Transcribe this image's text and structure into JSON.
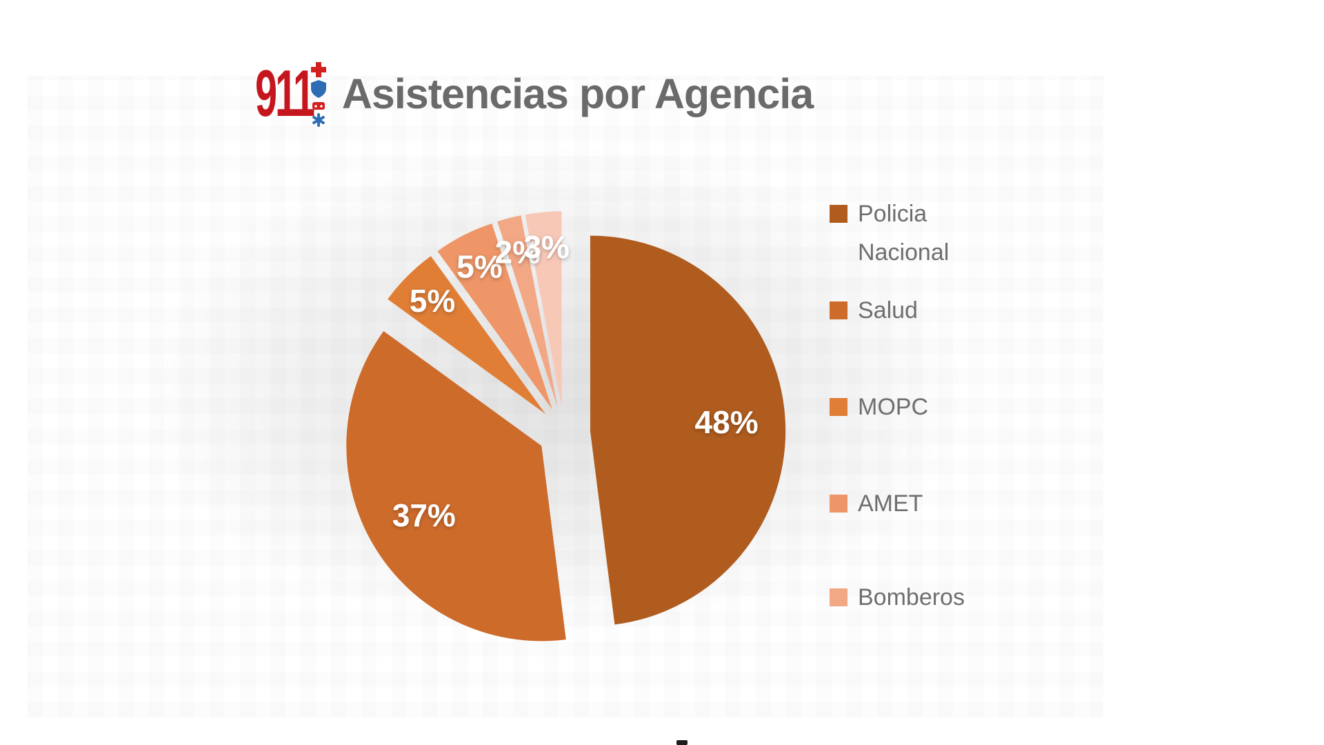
{
  "header": {
    "logo_text": "911",
    "title": "Asistencias por Agencia"
  },
  "chart_data": {
    "type": "pie",
    "title": "Asistencias por Agencia",
    "exploded": true,
    "start_angle_deg": 0,
    "clockwise": true,
    "legend_position": "right",
    "slices": [
      {
        "label": "Policia Nacional",
        "value": 48,
        "pct_label": "48%",
        "color": "#AF5C1E"
      },
      {
        "label": "Salud",
        "value": 37,
        "pct_label": "37%",
        "color": "#CD6B2B"
      },
      {
        "label": "MOPC",
        "value": 5,
        "pct_label": "5%",
        "color": "#E07E36"
      },
      {
        "label": "AMET",
        "value": 5,
        "pct_label": "5%",
        "color": "#EE9667"
      },
      {
        "label": "Bomberos",
        "value": 2,
        "pct_label": "2%",
        "color": "#F2A785"
      },
      {
        "label": "",
        "value": 3,
        "pct_label": "3%",
        "color": "#F8C8B7"
      }
    ],
    "legend": [
      {
        "label": "Policia\nNacional",
        "color": "#AF5C1E"
      },
      {
        "label": "Salud",
        "color": "#CD6B2B"
      },
      {
        "label": "MOPC",
        "color": "#E07E36"
      },
      {
        "label": "AMET",
        "color": "#EE9667"
      },
      {
        "label": "Bomberos",
        "color": "#F2A785"
      }
    ],
    "colors": {
      "title_gray": "#6A6A6A",
      "legend_text_gray": "#6E6E6E",
      "logo_red": "#C4161C",
      "logo_blue": "#2E6DB4"
    }
  }
}
